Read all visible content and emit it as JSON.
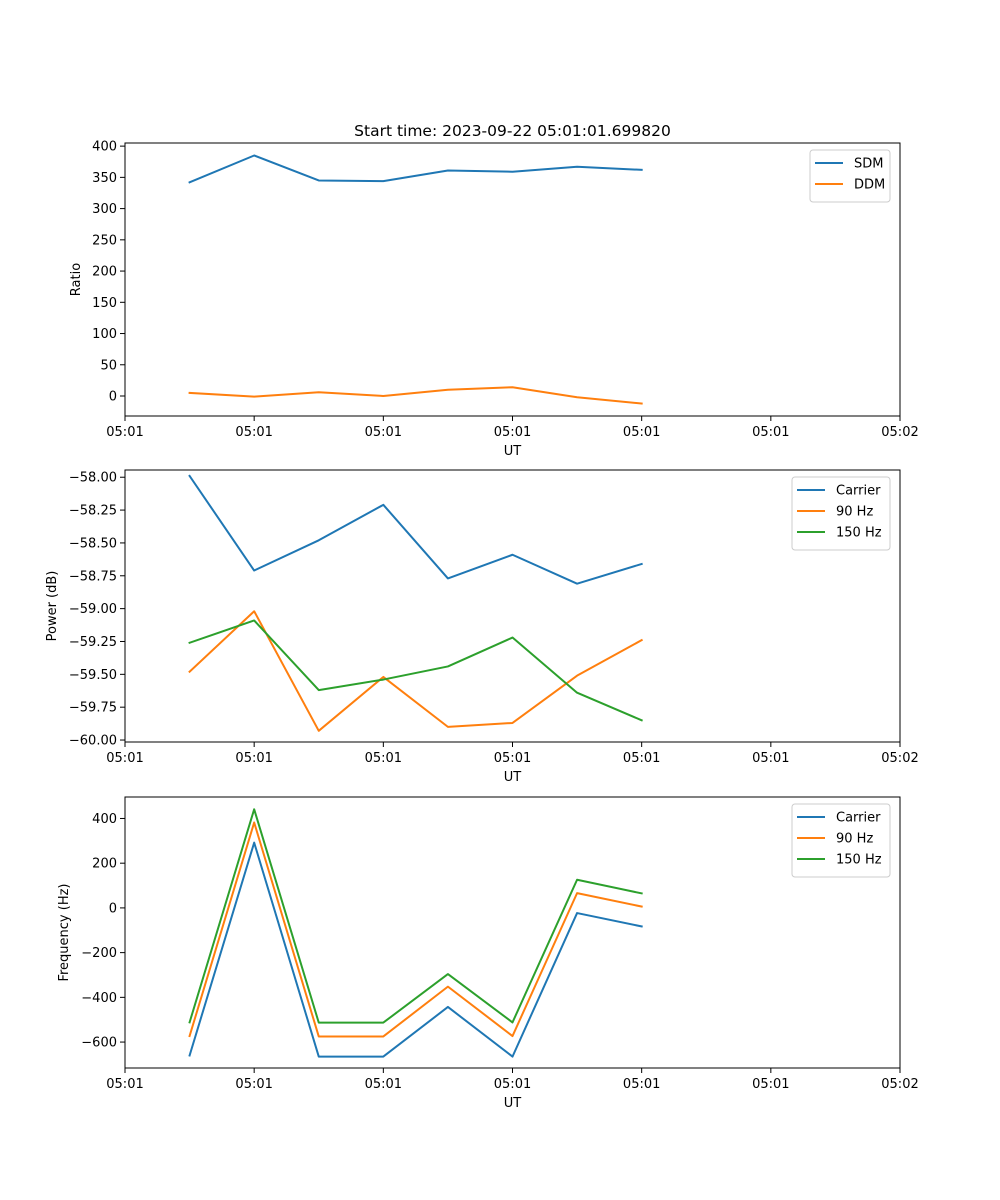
{
  "chart_data": [
    {
      "type": "line",
      "title": "Start time: 2023-09-22 05:01:01.699820",
      "xlabel": "UT",
      "ylabel": "Ratio",
      "x": [
        0.5,
        1,
        1.5,
        2,
        2.5,
        3,
        3.5,
        4
      ],
      "xlim": [
        0,
        6
      ],
      "x_ticks": [
        0,
        1,
        2,
        3,
        4,
        5,
        6
      ],
      "x_tick_labels": [
        "05:01",
        "05:01",
        "05:01",
        "05:01",
        "05:01",
        "05:01",
        "05:02"
      ],
      "ylim": [
        -32,
        405
      ],
      "y_ticks": [
        0,
        50,
        100,
        150,
        200,
        250,
        300,
        350,
        400
      ],
      "y_tick_labels": [
        "0",
        "50",
        "100",
        "150",
        "200",
        "250",
        "300",
        "350",
        "400"
      ],
      "series": [
        {
          "name": "SDM",
          "color": "#1f77b4",
          "values": [
            342,
            385,
            345,
            344,
            361,
            359,
            367,
            362
          ]
        },
        {
          "name": "DDM",
          "color": "#ff7f0e",
          "values": [
            5,
            -1,
            6,
            0,
            10,
            14,
            -2,
            -12
          ]
        }
      ]
    },
    {
      "type": "line",
      "title": "",
      "xlabel": "UT",
      "ylabel": "Power (dB)",
      "x": [
        0.5,
        1,
        1.5,
        2,
        2.5,
        3,
        3.5,
        4
      ],
      "xlim": [
        0,
        6
      ],
      "x_ticks": [
        0,
        1,
        2,
        3,
        4,
        5,
        6
      ],
      "x_tick_labels": [
        "05:01",
        "05:01",
        "05:01",
        "05:01",
        "05:01",
        "05:01",
        "05:02"
      ],
      "ylim": [
        -60.015,
        -57.945
      ],
      "y_ticks": [
        -58.0,
        -58.25,
        -58.5,
        -58.75,
        -59.0,
        -59.25,
        -59.5,
        -59.75,
        -60.0
      ],
      "y_tick_labels": [
        "−58.00",
        "−58.25",
        "−58.50",
        "−58.75",
        "−59.00",
        "−59.25",
        "−59.50",
        "−59.75",
        "−60.00"
      ],
      "series": [
        {
          "name": "Carrier",
          "color": "#1f77b4",
          "values": [
            -57.99,
            -58.71,
            -58.48,
            -58.21,
            -58.77,
            -58.59,
            -58.81,
            -58.66
          ]
        },
        {
          "name": "90 Hz",
          "color": "#ff7f0e",
          "values": [
            -59.48,
            -59.02,
            -59.93,
            -59.52,
            -59.9,
            -59.87,
            -59.51,
            -59.24
          ]
        },
        {
          "name": "150 Hz",
          "color": "#2ca02c",
          "values": [
            -59.26,
            -59.09,
            -59.62,
            -59.54,
            -59.44,
            -59.22,
            -59.64,
            -59.85
          ]
        }
      ]
    },
    {
      "type": "line",
      "title": "",
      "xlabel": "UT",
      "ylabel": "Frequency (Hz)",
      "x": [
        0.5,
        1,
        1.5,
        2,
        2.5,
        3,
        3.5,
        4
      ],
      "xlim": [
        0,
        6
      ],
      "x_ticks": [
        0,
        1,
        2,
        3,
        4,
        5,
        6
      ],
      "x_tick_labels": [
        "05:01",
        "05:01",
        "05:01",
        "05:01",
        "05:01",
        "05:01",
        "05:02"
      ],
      "ylim": [
        -716,
        496
      ],
      "y_ticks": [
        400,
        200,
        0,
        -200,
        -400,
        -600
      ],
      "y_tick_labels": [
        "400",
        "200",
        "0",
        "−200",
        "−400",
        "−600"
      ],
      "series": [
        {
          "name": "Carrier",
          "color": "#1f77b4",
          "values": [
            -660,
            292,
            -665,
            -665,
            -443,
            -665,
            -23,
            -83
          ]
        },
        {
          "name": "90 Hz",
          "color": "#ff7f0e",
          "values": [
            -573,
            382,
            -575,
            -575,
            -352,
            -573,
            66,
            6
          ]
        },
        {
          "name": "150 Hz",
          "color": "#2ca02c",
          "values": [
            -512,
            441,
            -513,
            -513,
            -296,
            -512,
            126,
            65
          ]
        }
      ]
    }
  ]
}
